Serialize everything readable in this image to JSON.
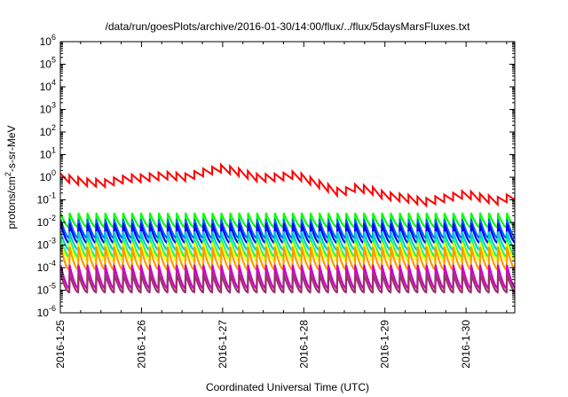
{
  "chart_data": {
    "type": "line",
    "title": "/data/run/goesPlots/archive/2016-01-30/14:00/flux/../flux/5daysMarsFluxes.txt",
    "xlabel": "Coordinated Universal Time (UTC)",
    "ylabel_main": "protons/cm",
    "ylabel_sup": "2",
    "ylabel_tail": "-s-sr-MeV",
    "x_tick_labels": [
      "2016-1-25",
      "2016-1-26",
      "2016-1-27",
      "2016-1-28",
      "2016-1-29",
      "2016-1-30"
    ],
    "xlim_days": [
      0,
      5.6
    ],
    "y_scale": "log",
    "ylim": [
      1e-06,
      1000000.0
    ],
    "y_ticks": [
      {
        "base": "10",
        "exp": "-6"
      },
      {
        "base": "10",
        "exp": "-5"
      },
      {
        "base": "10",
        "exp": "-4"
      },
      {
        "base": "10",
        "exp": "-3"
      },
      {
        "base": "10",
        "exp": "-2"
      },
      {
        "base": "10",
        "exp": "-1"
      },
      {
        "base": "10",
        "exp": "0"
      },
      {
        "base": "10",
        "exp": "1"
      },
      {
        "base": "10",
        "exp": "2"
      },
      {
        "base": "10",
        "exp": "3"
      },
      {
        "base": "10",
        "exp": "4"
      },
      {
        "base": "10",
        "exp": "5"
      },
      {
        "base": "10",
        "exp": "6"
      }
    ],
    "grid": false,
    "legend": "none",
    "red_series": {
      "color": "#ff0000",
      "x_days": [
        0.0,
        0.3,
        0.55,
        0.85,
        1.0,
        1.3,
        1.55,
        1.75,
        2.0,
        2.25,
        2.45,
        2.7,
        2.9,
        3.0,
        3.25,
        3.45,
        3.65,
        3.85,
        4.0,
        4.25,
        4.5,
        4.75,
        5.0,
        5.2,
        5.4,
        5.6
      ],
      "values": [
        1.0,
        0.6,
        0.55,
        0.9,
        0.9,
        1.2,
        1.0,
        1.6,
        2.5,
        1.5,
        0.9,
        1.0,
        1.3,
        0.9,
        0.4,
        0.2,
        0.35,
        0.25,
        0.15,
        0.12,
        0.08,
        0.12,
        0.18,
        0.12,
        0.09,
        0.15
      ],
      "oscillation_ratio": 2.2
    },
    "periodic_series": [
      {
        "color": "#00ff00",
        "peak": 0.025,
        "trough": 0.006
      },
      {
        "color": "#0066ff",
        "peak": 0.012,
        "trough": 0.002
      },
      {
        "color": "#0000ff",
        "peak": 0.008,
        "trough": 0.0012
      },
      {
        "color": "#00cccc",
        "peak": 0.004,
        "trough": 0.0006
      },
      {
        "color": "#00ff66",
        "peak": 0.002,
        "trough": 0.0003
      },
      {
        "color": "#ffff00",
        "peak": 0.0012,
        "trough": 0.0002
      },
      {
        "color": "#ff9900",
        "peak": 0.0007,
        "trough": 8e-05
      },
      {
        "color": "#cc00cc",
        "peak": 0.00012,
        "trough": 1.2e-05
      },
      {
        "color": "#993366",
        "peak": 6e-05,
        "trough": 8e-06
      }
    ],
    "spike_period_days": 0.11
  }
}
